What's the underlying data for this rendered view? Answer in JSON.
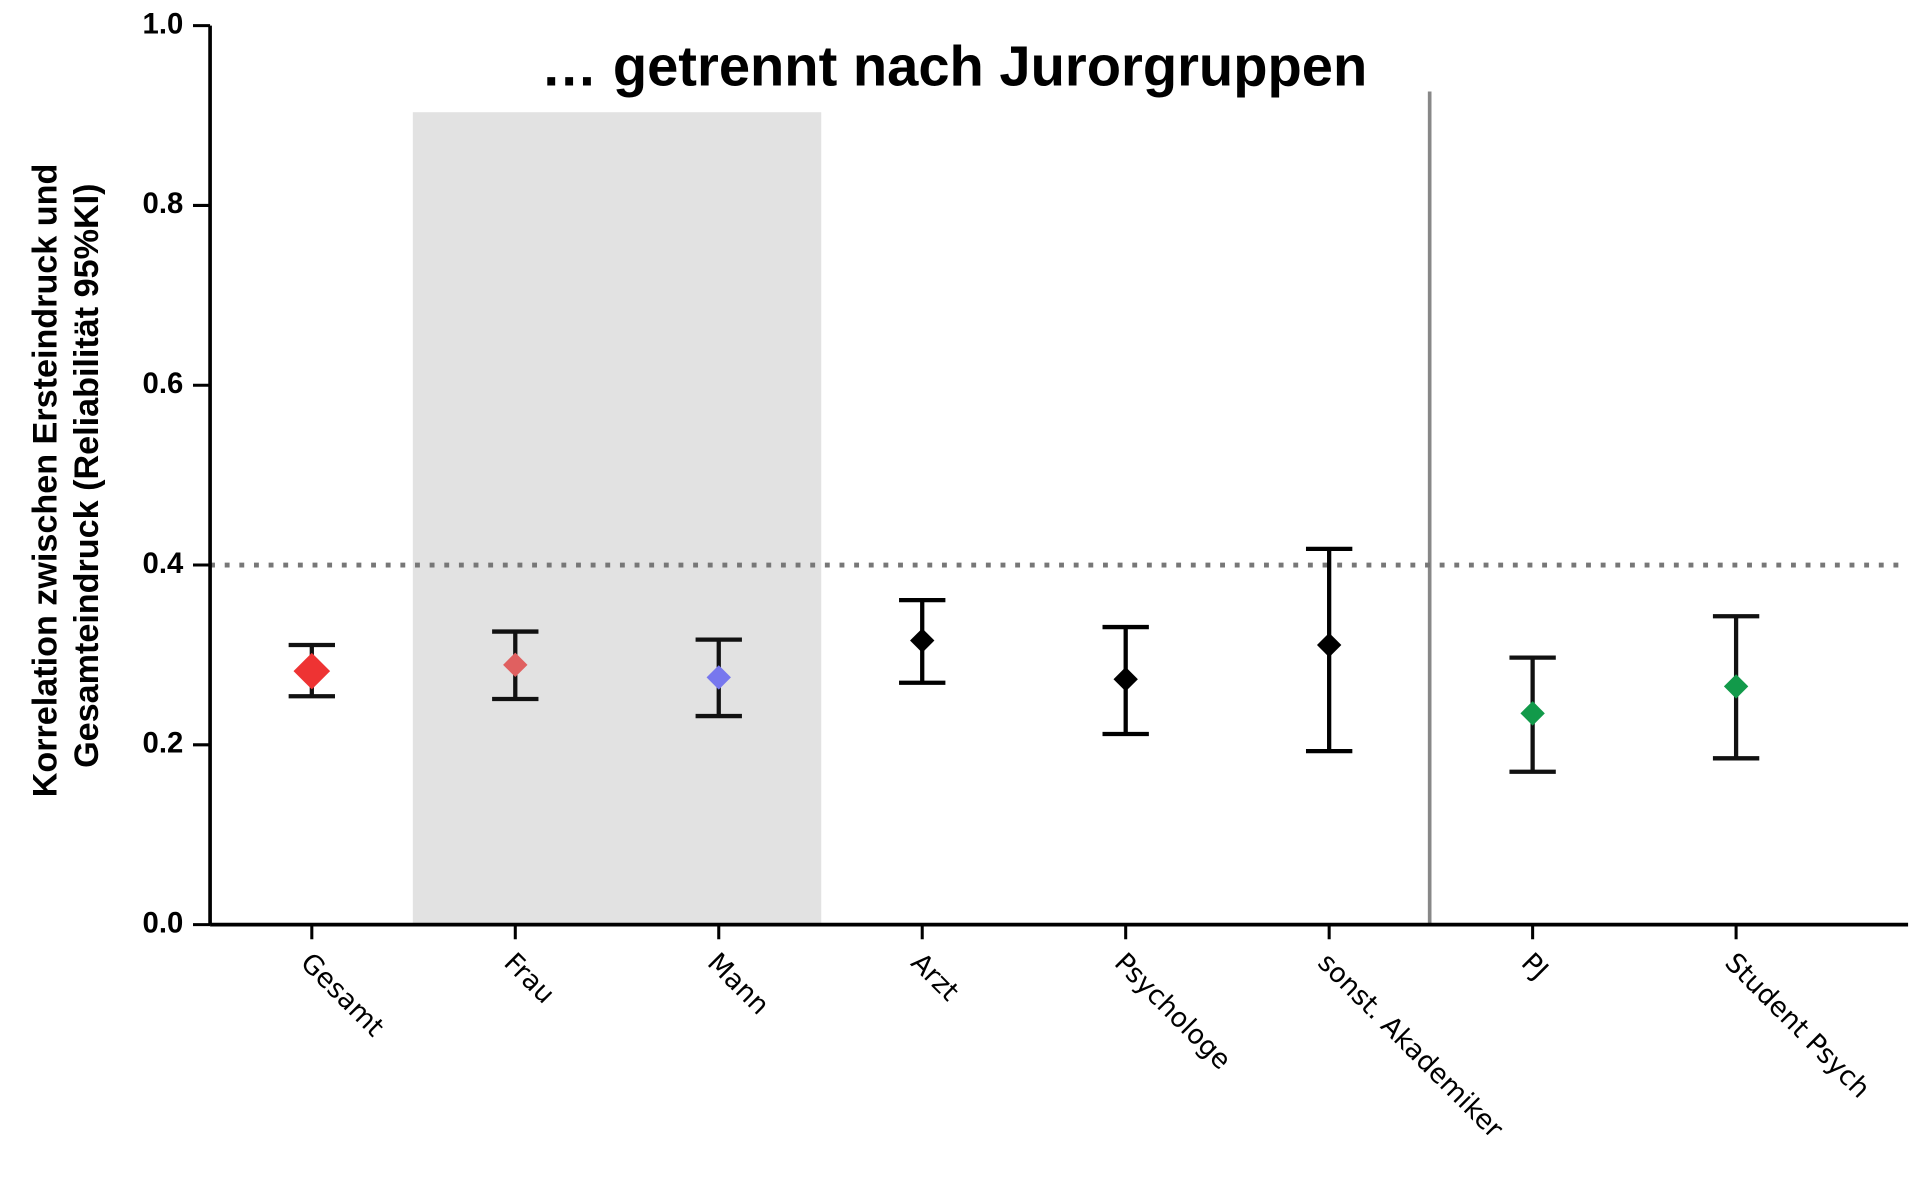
{
  "chart_data": {
    "type": "errorbar",
    "title": "… getrennt nach Jurorgruppen",
    "ylabel": [
      "Korrelation zwischen Ersteindruck und",
      "Gesamteindruck (Reliabilität 95%KI)"
    ],
    "categories": [
      "Gesamt",
      "Frau",
      "Mann",
      "Arzt",
      "Psychologe",
      "sonst. Akademiker",
      "PJ",
      "Student Psych"
    ],
    "values": [
      0.282,
      0.289,
      0.275,
      0.316,
      0.273,
      0.311,
      0.235,
      0.265
    ],
    "ci_low": [
      0.254,
      0.251,
      0.232,
      0.269,
      0.212,
      0.193,
      0.17,
      0.185
    ],
    "ci_high": [
      0.311,
      0.326,
      0.317,
      0.361,
      0.331,
      0.418,
      0.297,
      0.343
    ],
    "colors": [
      "#ee3333",
      "#e06060",
      "#7777ee",
      "#000000",
      "#000000",
      "#000000",
      "#129a4a",
      "#129a4a"
    ],
    "reference_line": 0.4,
    "ylim": [
      0,
      1
    ],
    "yticks": [
      {
        "value": 0,
        "label": "0.0"
      },
      0.2,
      0.4,
      0.6,
      0.8,
      {
        "value": 1,
        "label": "1.0"
      }
    ]
  }
}
